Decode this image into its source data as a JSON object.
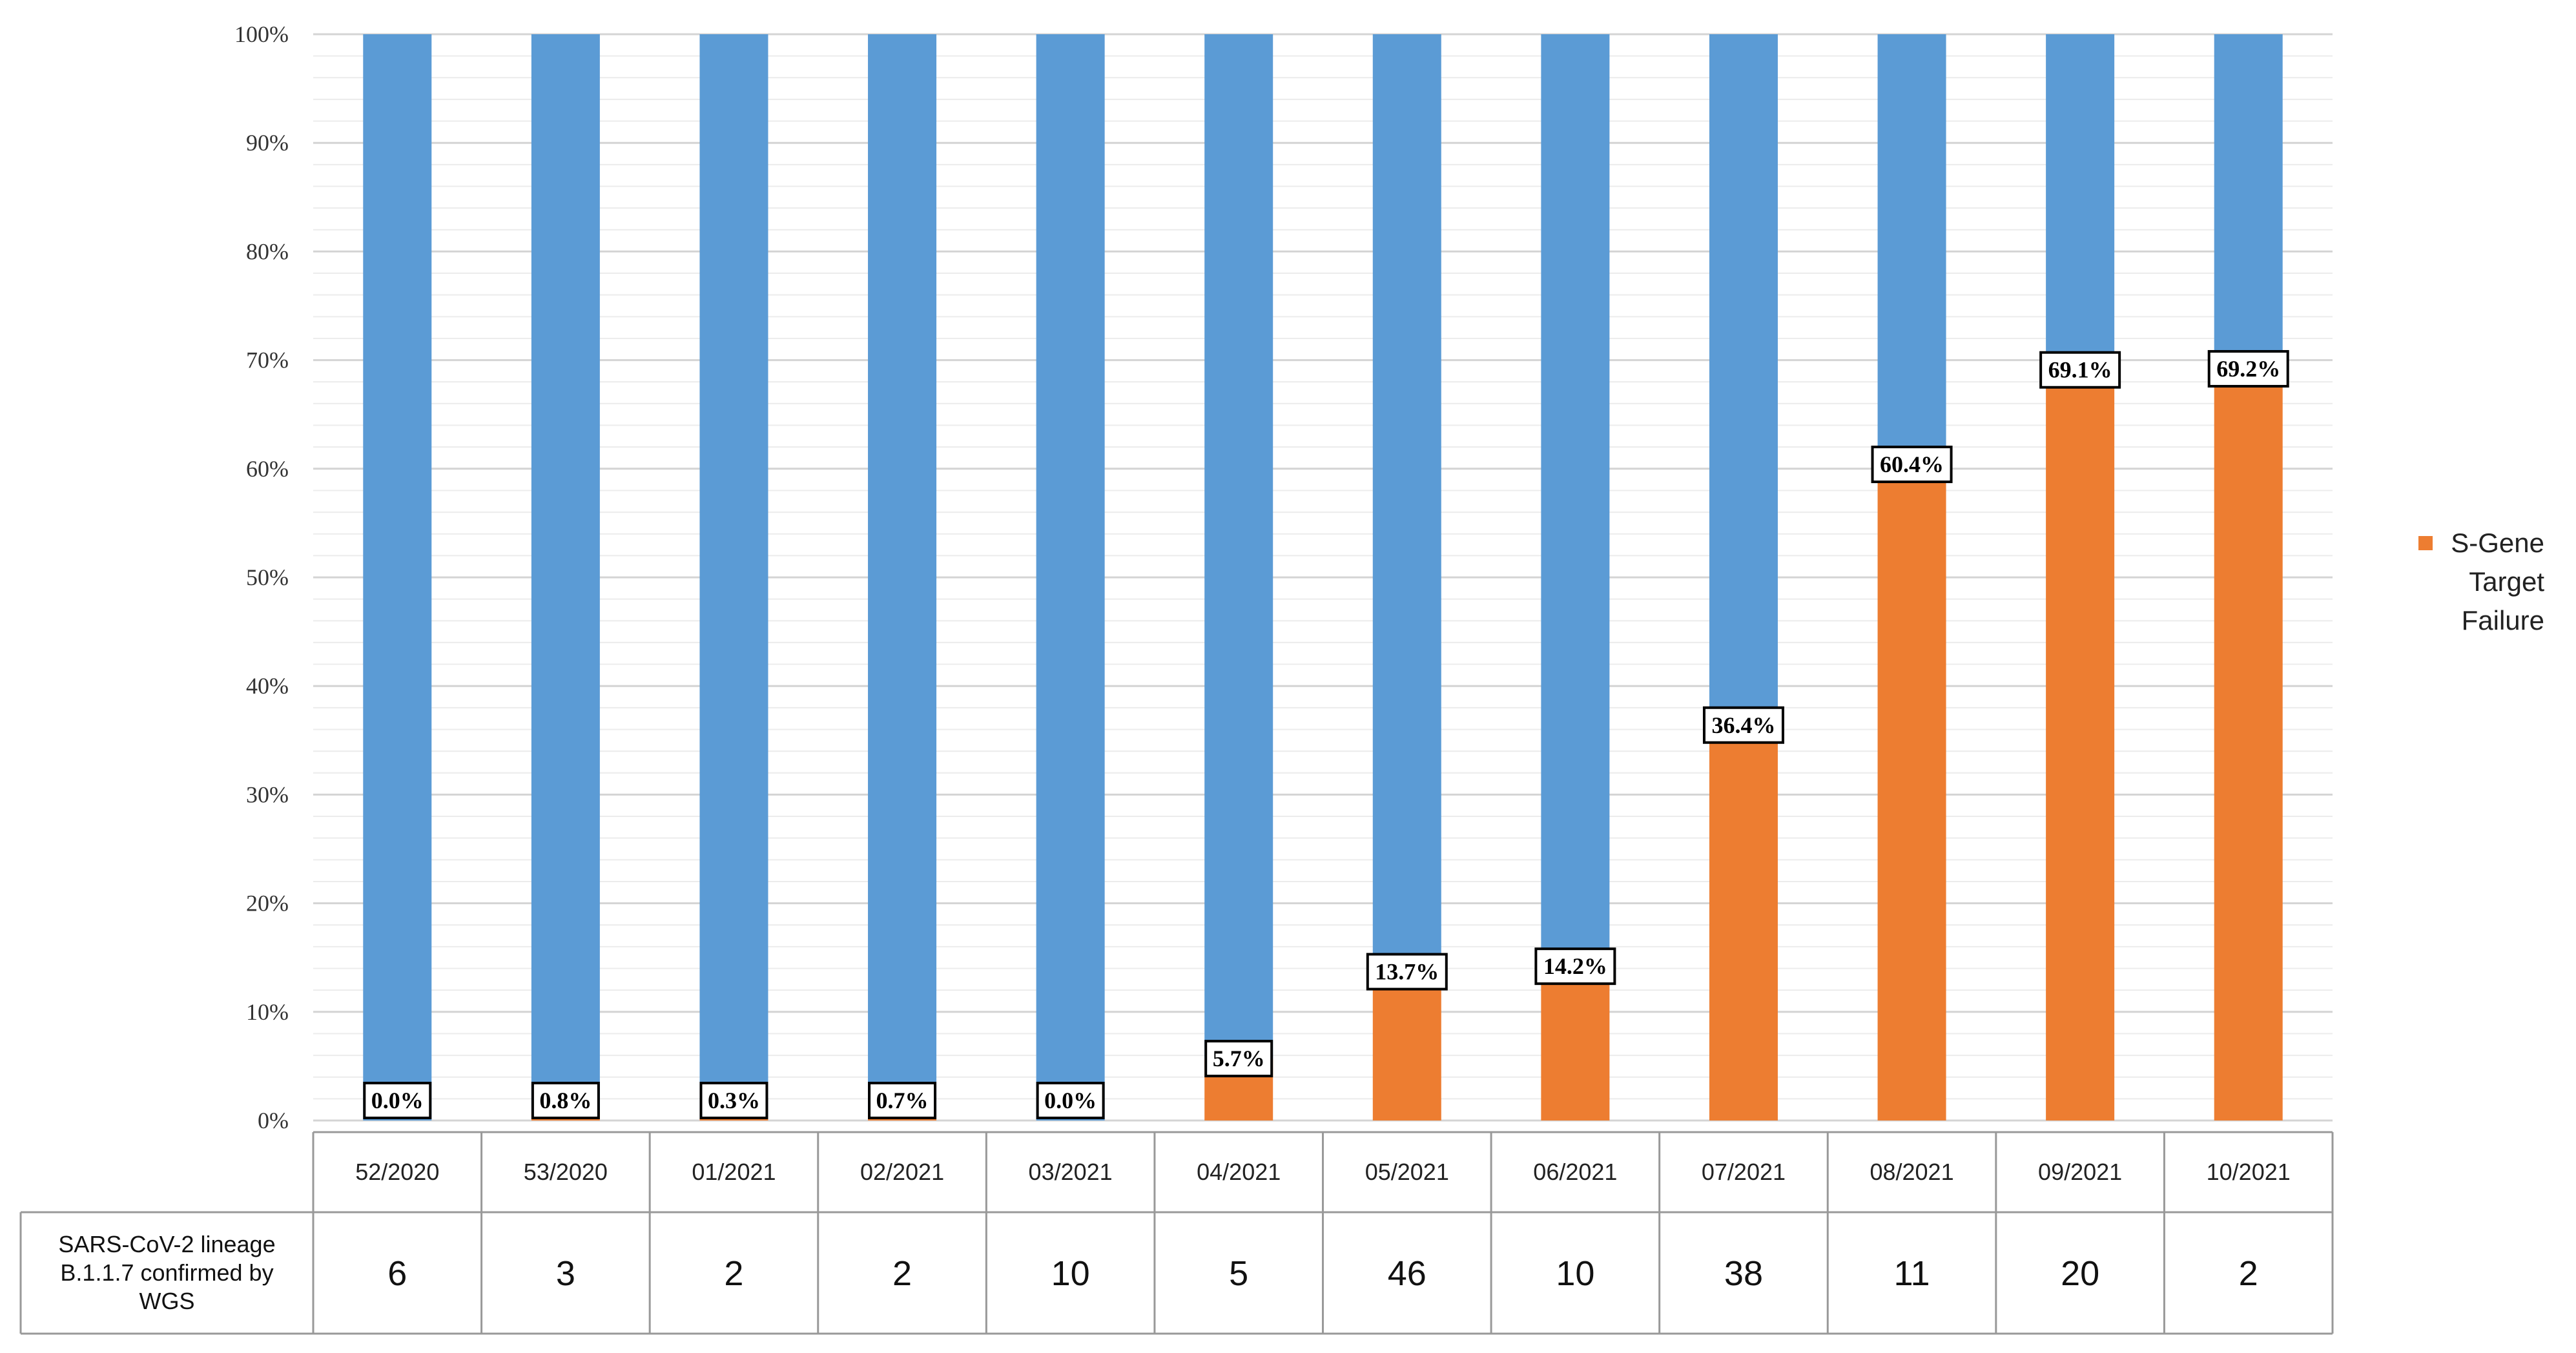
{
  "chart_data": {
    "type": "bar",
    "stacked": "percent",
    "categories": [
      "52/2020",
      "53/2020",
      "01/2021",
      "02/2021",
      "03/2021",
      "04/2021",
      "05/2021",
      "06/2021",
      "07/2021",
      "08/2021",
      "09/2021",
      "10/2021"
    ],
    "series": [
      {
        "name": "S-Gene Target Failure",
        "color": "#ED7D31",
        "values": [
          0.0,
          0.8,
          0.3,
          0.7,
          0.0,
          5.7,
          13.7,
          14.2,
          36.4,
          60.4,
          69.1,
          69.2
        ],
        "labels": [
          "0.0%",
          "0.8%",
          "0.3%",
          "0.7%",
          "0.0%",
          "5.7%",
          "13.7%",
          "14.2%",
          "36.4%",
          "60.4%",
          "69.1%",
          "69.2%"
        ]
      },
      {
        "color": "#5B9BD5",
        "values": [
          100.0,
          99.2,
          99.7,
          99.3,
          100.0,
          94.3,
          86.3,
          85.8,
          63.6,
          39.6,
          30.9,
          30.8
        ]
      }
    ],
    "y_ticks": [
      "0%",
      "10%",
      "20%",
      "30%",
      "40%",
      "50%",
      "60%",
      "70%",
      "80%",
      "90%",
      "100%"
    ],
    "ylim": [
      0,
      100
    ],
    "grid": true,
    "legend": {
      "position": "right",
      "lines": [
        "S-Gene",
        "Target",
        "Failure"
      ]
    },
    "data_table": {
      "row_label_lines": [
        "SARS-CoV-2 lineage",
        "B.1.1.7 confirmed by",
        "WGS"
      ],
      "values": [
        "6",
        "3",
        "2",
        "2",
        "10",
        "5",
        "46",
        "10",
        "38",
        "11",
        "20",
        "2"
      ]
    }
  }
}
